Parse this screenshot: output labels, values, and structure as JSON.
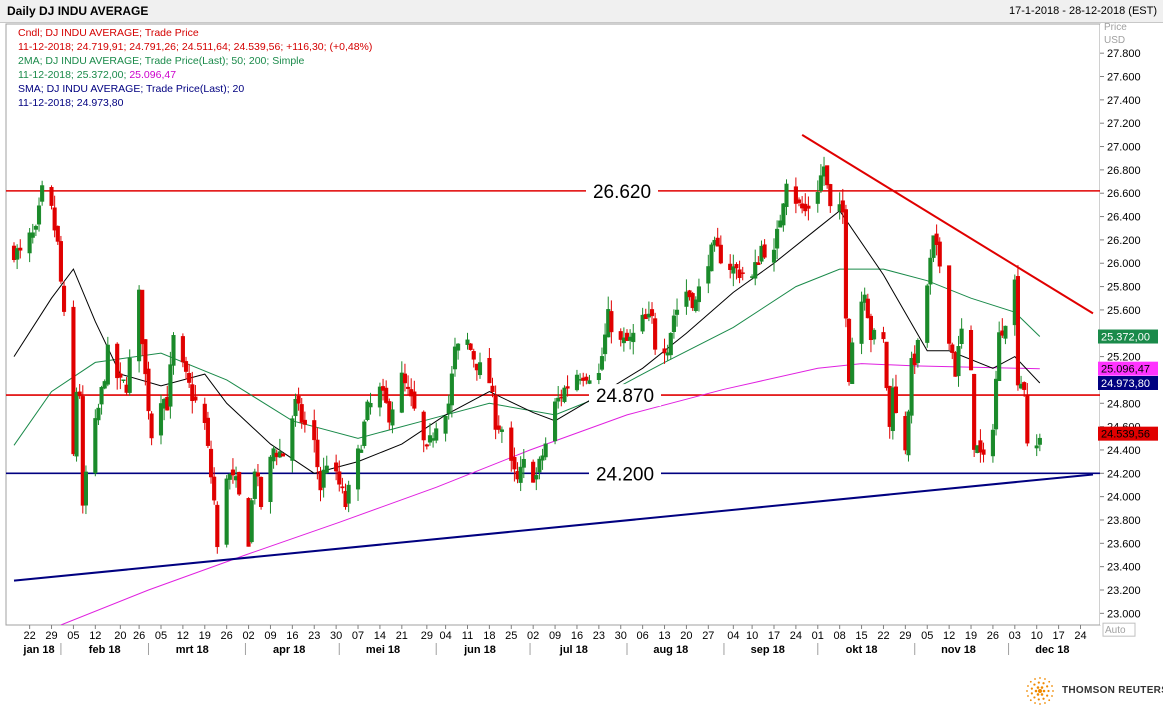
{
  "header": {
    "title": "Daily DJ INDU AVERAGE",
    "date_range": "17-1-2018 - 28-12-2018 (EST)"
  },
  "legend": [
    {
      "text": "Cndl; DJ INDU AVERAGE; Trade Price",
      "color": "#d40000"
    },
    {
      "text": "11-12-2018; 24.719,91; 24.791,26; 24.511,64; 24.539,56; +116,30; (+0,48%)",
      "color": "#d40000"
    },
    {
      "text": "2MA; DJ INDU AVERAGE; Trade Price(Last);  50; 200; Simple",
      "color": "#1a8a4a"
    },
    {
      "text": "11-12-2018; 25.372,00;",
      "color": "#1a8a4a",
      "tail": "25.096,47",
      "tail_color": "#cc00cc"
    },
    {
      "text": "SMA; DJ INDU AVERAGE; Trade Price(Last);  20",
      "color": "#000080"
    },
    {
      "text": "11-12-2018; 24.973,80",
      "color": "#000080"
    }
  ],
  "chart_data": {
    "type": "candlestick",
    "y_axis": {
      "unit_label": [
        "Price",
        "USD"
      ],
      "min": 22900,
      "max": 28050,
      "step": 200,
      "ticks": [
        "23.000",
        "23.200",
        "23.400",
        "23.600",
        "23.800",
        "24.000",
        "24.200",
        "24.400",
        "24.600",
        "24.800",
        "25.000",
        "25.200",
        "25.400",
        "25.600",
        "25.800",
        "26.000",
        "26.200",
        "26.400",
        "26.600",
        "26.800",
        "27.000",
        "27.200",
        "27.400",
        "27.600",
        "27.800"
      ],
      "auto_label": "Auto"
    },
    "x_axis": {
      "start_date": "2018-01-17",
      "end_date": "2018-12-28",
      "day_ticks": [
        {
          "date": "2018-01-22",
          "label": "22"
        },
        {
          "date": "2018-01-29",
          "label": "29"
        },
        {
          "date": "2018-02-05",
          "label": "05"
        },
        {
          "date": "2018-02-12",
          "label": "12"
        },
        {
          "date": "2018-02-20",
          "label": "20"
        },
        {
          "date": "2018-02-26",
          "label": "26"
        },
        {
          "date": "2018-03-05",
          "label": "05"
        },
        {
          "date": "2018-03-12",
          "label": "12"
        },
        {
          "date": "2018-03-19",
          "label": "19"
        },
        {
          "date": "2018-03-26",
          "label": "26"
        },
        {
          "date": "2018-04-02",
          "label": "02"
        },
        {
          "date": "2018-04-09",
          "label": "09"
        },
        {
          "date": "2018-04-16",
          "label": "16"
        },
        {
          "date": "2018-04-23",
          "label": "23"
        },
        {
          "date": "2018-04-30",
          "label": "30"
        },
        {
          "date": "2018-05-07",
          "label": "07"
        },
        {
          "date": "2018-05-14",
          "label": "14"
        },
        {
          "date": "2018-05-21",
          "label": "21"
        },
        {
          "date": "2018-05-29",
          "label": "29"
        },
        {
          "date": "2018-06-04",
          "label": "04"
        },
        {
          "date": "2018-06-11",
          "label": "11"
        },
        {
          "date": "2018-06-18",
          "label": "18"
        },
        {
          "date": "2018-06-25",
          "label": "25"
        },
        {
          "date": "2018-07-02",
          "label": "02"
        },
        {
          "date": "2018-07-09",
          "label": "09"
        },
        {
          "date": "2018-07-16",
          "label": "16"
        },
        {
          "date": "2018-07-23",
          "label": "23"
        },
        {
          "date": "2018-07-30",
          "label": "30"
        },
        {
          "date": "2018-08-06",
          "label": "06"
        },
        {
          "date": "2018-08-13",
          "label": "13"
        },
        {
          "date": "2018-08-20",
          "label": "20"
        },
        {
          "date": "2018-08-27",
          "label": "27"
        },
        {
          "date": "2018-09-04",
          "label": "04"
        },
        {
          "date": "2018-09-10",
          "label": "10"
        },
        {
          "date": "2018-09-17",
          "label": "17"
        },
        {
          "date": "2018-09-24",
          "label": "24"
        },
        {
          "date": "2018-10-01",
          "label": "01"
        },
        {
          "date": "2018-10-08",
          "label": "08"
        },
        {
          "date": "2018-10-15",
          "label": "15"
        },
        {
          "date": "2018-10-22",
          "label": "22"
        },
        {
          "date": "2018-10-29",
          "label": "29"
        },
        {
          "date": "2018-11-05",
          "label": "05"
        },
        {
          "date": "2018-11-12",
          "label": "12"
        },
        {
          "date": "2018-11-19",
          "label": "19"
        },
        {
          "date": "2018-11-26",
          "label": "26"
        },
        {
          "date": "2018-12-03",
          "label": "03"
        },
        {
          "date": "2018-12-10",
          "label": "10"
        },
        {
          "date": "2018-12-17",
          "label": "17"
        },
        {
          "date": "2018-12-24",
          "label": "24"
        }
      ],
      "month_labels": [
        {
          "date": "2018-01-25",
          "label": "jan 18"
        },
        {
          "date": "2018-02-15",
          "label": "feb 18"
        },
        {
          "date": "2018-03-15",
          "label": "mrt 18"
        },
        {
          "date": "2018-04-15",
          "label": "apr 18"
        },
        {
          "date": "2018-05-15",
          "label": "mei 18"
        },
        {
          "date": "2018-06-15",
          "label": "jun 18"
        },
        {
          "date": "2018-07-15",
          "label": "jul 18"
        },
        {
          "date": "2018-08-15",
          "label": "aug 18"
        },
        {
          "date": "2018-09-15",
          "label": "sep 18"
        },
        {
          "date": "2018-10-15",
          "label": "okt 18"
        },
        {
          "date": "2018-11-15",
          "label": "nov 18"
        },
        {
          "date": "2018-12-15",
          "label": "dec 18"
        }
      ]
    },
    "close_path": [
      [
        "2018-01-17",
        26110
      ],
      [
        "2018-01-19",
        26070
      ],
      [
        "2018-01-22",
        26210
      ],
      [
        "2018-01-24",
        26250
      ],
      [
        "2018-01-26",
        26600
      ],
      [
        "2018-01-29",
        26440
      ],
      [
        "2018-01-31",
        26150
      ],
      [
        "2018-02-02",
        25520
      ],
      [
        "2018-02-05",
        24340
      ],
      [
        "2018-02-06",
        24910
      ],
      [
        "2018-02-07",
        24890
      ],
      [
        "2018-02-08",
        23860
      ],
      [
        "2018-02-09",
        24190
      ],
      [
        "2018-02-12",
        24600
      ],
      [
        "2018-02-14",
        24890
      ],
      [
        "2018-02-16",
        25220
      ],
      [
        "2018-02-20",
        24960
      ],
      [
        "2018-02-22",
        24960
      ],
      [
        "2018-02-26",
        25710
      ],
      [
        "2018-02-28",
        25030
      ],
      [
        "2018-03-02",
        24540
      ],
      [
        "2018-03-05",
        24870
      ],
      [
        "2018-03-07",
        24800
      ],
      [
        "2018-03-09",
        25340
      ],
      [
        "2018-03-13",
        25010
      ],
      [
        "2018-03-15",
        24870
      ],
      [
        "2018-03-19",
        24610
      ],
      [
        "2018-03-22",
        23960
      ],
      [
        "2018-03-23",
        23530
      ],
      [
        "2018-03-26",
        24200
      ],
      [
        "2018-03-29",
        24100
      ],
      [
        "2018-04-02",
        23640
      ],
      [
        "2018-04-04",
        24260
      ],
      [
        "2018-04-06",
        23930
      ],
      [
        "2018-04-10",
        24410
      ],
      [
        "2018-04-13",
        24360
      ],
      [
        "2018-04-17",
        24790
      ],
      [
        "2018-04-19",
        24660
      ],
      [
        "2018-04-23",
        24450
      ],
      [
        "2018-04-25",
        24080
      ],
      [
        "2018-04-27",
        24310
      ],
      [
        "2018-05-01",
        24100
      ],
      [
        "2018-05-03",
        23930
      ],
      [
        "2018-05-07",
        24350
      ],
      [
        "2018-05-10",
        24740
      ],
      [
        "2018-05-14",
        24900
      ],
      [
        "2018-05-17",
        24710
      ],
      [
        "2018-05-21",
        25010
      ],
      [
        "2018-05-24",
        24810
      ],
      [
        "2018-05-29",
        24360
      ],
      [
        "2018-06-01",
        24640
      ],
      [
        "2018-06-05",
        24800
      ],
      [
        "2018-06-07",
        25240
      ],
      [
        "2018-06-11",
        25320
      ],
      [
        "2018-06-13",
        25200
      ],
      [
        "2018-06-15",
        25090
      ],
      [
        "2018-06-18",
        24990
      ],
      [
        "2018-06-20",
        24650
      ],
      [
        "2018-06-22",
        24580
      ],
      [
        "2018-06-25",
        24250
      ],
      [
        "2018-06-27",
        24120
      ],
      [
        "2018-06-29",
        24270
      ],
      [
        "2018-07-03",
        24170
      ],
      [
        "2018-07-06",
        24450
      ],
      [
        "2018-07-09",
        24780
      ],
      [
        "2018-07-12",
        24920
      ],
      [
        "2018-07-16",
        25060
      ],
      [
        "2018-07-19",
        25060
      ],
      [
        "2018-07-23",
        25040
      ],
      [
        "2018-07-26",
        25530
      ],
      [
        "2018-07-30",
        25310
      ],
      [
        "2018-08-02",
        25330
      ],
      [
        "2018-08-06",
        25500
      ],
      [
        "2018-08-09",
        25510
      ],
      [
        "2018-08-10",
        25310
      ],
      [
        "2018-08-14",
        25300
      ],
      [
        "2018-08-16",
        25560
      ],
      [
        "2018-08-20",
        25760
      ],
      [
        "2018-08-23",
        25660
      ],
      [
        "2018-08-27",
        26050
      ],
      [
        "2018-08-29",
        26120
      ],
      [
        "2018-09-04",
        25950
      ],
      [
        "2018-09-07",
        25920
      ],
      [
        "2018-09-10",
        25860
      ],
      [
        "2018-09-13",
        26140
      ],
      [
        "2018-09-17",
        26060
      ],
      [
        "2018-09-19",
        26400
      ],
      [
        "2018-09-21",
        26740
      ],
      [
        "2018-09-25",
        26490
      ],
      [
        "2018-09-27",
        26440
      ],
      [
        "2018-10-01",
        26650
      ],
      [
        "2018-10-03",
        26830
      ],
      [
        "2018-10-05",
        26450
      ],
      [
        "2018-10-09",
        26430
      ],
      [
        "2018-10-10",
        25600
      ],
      [
        "2018-10-11",
        25050
      ],
      [
        "2018-10-12",
        25340
      ],
      [
        "2018-10-16",
        25800
      ],
      [
        "2018-10-18",
        25380
      ],
      [
        "2018-10-22",
        25320
      ],
      [
        "2018-10-24",
        24580
      ],
      [
        "2018-10-25",
        25000
      ],
      [
        "2018-10-26",
        24690
      ],
      [
        "2018-10-29",
        24440
      ],
      [
        "2018-10-31",
        25110
      ],
      [
        "2018-11-02",
        25270
      ],
      [
        "2018-11-07",
        26180
      ],
      [
        "2018-11-09",
        25990
      ],
      [
        "2018-11-12",
        25390
      ],
      [
        "2018-11-14",
        25080
      ],
      [
        "2018-11-16",
        25410
      ],
      [
        "2018-11-19",
        25020
      ],
      [
        "2018-11-20",
        24470
      ],
      [
        "2018-11-23",
        24290
      ],
      [
        "2018-11-26",
        24640
      ],
      [
        "2018-11-28",
        25370
      ],
      [
        "2018-11-30",
        25540
      ],
      [
        "2018-12-03",
        25830
      ],
      [
        "2018-12-04",
        25030
      ],
      [
        "2018-12-06",
        24950
      ],
      [
        "2018-12-07",
        24390
      ],
      [
        "2018-12-10",
        24420
      ],
      [
        "2018-12-11",
        24540
      ]
    ],
    "ma20_path": [
      [
        "2018-01-17",
        25200
      ],
      [
        "2018-01-29",
        25700
      ],
      [
        "2018-02-05",
        25950
      ],
      [
        "2018-02-12",
        25500
      ],
      [
        "2018-02-20",
        25050
      ],
      [
        "2018-03-05",
        24950
      ],
      [
        "2018-03-19",
        25050
      ],
      [
        "2018-03-26",
        24800
      ],
      [
        "2018-04-09",
        24450
      ],
      [
        "2018-04-23",
        24200
      ],
      [
        "2018-05-07",
        24300
      ],
      [
        "2018-05-21",
        24450
      ],
      [
        "2018-06-04",
        24700
      ],
      [
        "2018-06-18",
        24900
      ],
      [
        "2018-07-02",
        24720
      ],
      [
        "2018-07-09",
        24650
      ],
      [
        "2018-07-23",
        24870
      ],
      [
        "2018-08-06",
        25100
      ],
      [
        "2018-08-20",
        25400
      ],
      [
        "2018-09-04",
        25750
      ],
      [
        "2018-09-17",
        26000
      ],
      [
        "2018-10-01",
        26300
      ],
      [
        "2018-10-08",
        26450
      ],
      [
        "2018-10-22",
        25900
      ],
      [
        "2018-11-05",
        25250
      ],
      [
        "2018-11-12",
        25250
      ],
      [
        "2018-11-26",
        25100
      ],
      [
        "2018-12-03",
        25200
      ],
      [
        "2018-12-11",
        24974
      ]
    ],
    "ma50_path": [
      [
        "2018-01-17",
        24440
      ],
      [
        "2018-01-29",
        24900
      ],
      [
        "2018-02-12",
        25150
      ],
      [
        "2018-03-05",
        25230
      ],
      [
        "2018-03-26",
        25000
      ],
      [
        "2018-04-16",
        24650
      ],
      [
        "2018-05-07",
        24500
      ],
      [
        "2018-05-28",
        24650
      ],
      [
        "2018-06-18",
        24800
      ],
      [
        "2018-07-09",
        24700
      ],
      [
        "2018-07-23",
        24850
      ],
      [
        "2018-08-13",
        25150
      ],
      [
        "2018-09-04",
        25450
      ],
      [
        "2018-09-24",
        25800
      ],
      [
        "2018-10-08",
        25950
      ],
      [
        "2018-10-22",
        25950
      ],
      [
        "2018-11-05",
        25850
      ],
      [
        "2018-11-19",
        25700
      ],
      [
        "2018-12-03",
        25580
      ],
      [
        "2018-12-11",
        25372
      ]
    ],
    "ma200_path": [
      [
        "2018-02-01",
        22900
      ],
      [
        "2018-03-01",
        23200
      ],
      [
        "2018-04-01",
        23500
      ],
      [
        "2018-05-01",
        23780
      ],
      [
        "2018-06-01",
        24080
      ],
      [
        "2018-07-01",
        24400
      ],
      [
        "2018-08-01",
        24700
      ],
      [
        "2018-09-01",
        24920
      ],
      [
        "2018-10-01",
        25100
      ],
      [
        "2018-10-15",
        25140
      ],
      [
        "2018-11-01",
        25120
      ],
      [
        "2018-12-11",
        25096
      ]
    ],
    "trendlines": [
      {
        "name": "support",
        "color": "#000080",
        "from": [
          "2018-01-17",
          23280
        ],
        "to": [
          "2018-12-28",
          24190
        ]
      },
      {
        "name": "resistance",
        "color": "#e00000",
        "from": [
          "2018-09-26",
          27100
        ],
        "to": [
          "2018-12-28",
          25570
        ]
      }
    ],
    "horizontal_levels": [
      {
        "value": 26620,
        "label": "26.620",
        "color": "#e00000"
      },
      {
        "value": 24870,
        "label": "24.870",
        "color": "#e00000"
      },
      {
        "value": 24200,
        "label": "24.200",
        "color": "#000080"
      }
    ],
    "price_tags": [
      {
        "value": 25372,
        "label": "25.372,00",
        "bg": "#1a8a4a",
        "fg": "#ffffff"
      },
      {
        "value": 25096.47,
        "label": "25.096,47",
        "bg": "#ff33ff",
        "fg": "#000000"
      },
      {
        "value": 24973.8,
        "label": "24.973,80",
        "bg": "#000080",
        "fg": "#ffffff"
      },
      {
        "value": 24539.56,
        "label": "24.539,56",
        "bg": "#e00000",
        "fg": "#000000"
      }
    ],
    "colors": {
      "up": "#1a8a2a",
      "down": "#e00000",
      "ma20": "#000000",
      "ma50": "#1a8a4a",
      "ma200": "#e020e0"
    }
  },
  "brand": {
    "name": "THOMSON REUTERS"
  }
}
